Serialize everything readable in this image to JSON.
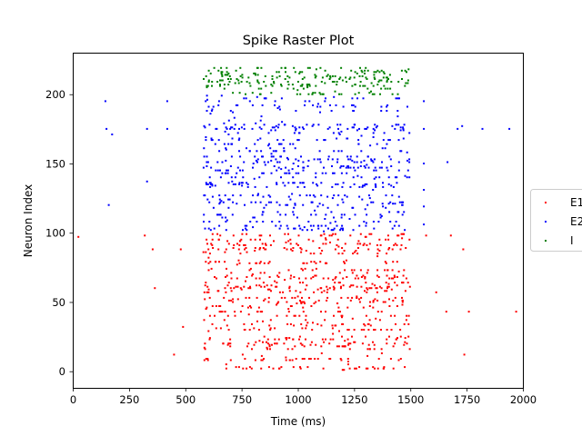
{
  "chart_data": {
    "type": "scatter",
    "title": "Spike Raster Plot",
    "xlabel": "Time (ms)",
    "ylabel": "Neuron Index",
    "xlim": [
      0,
      2000
    ],
    "ylim": [
      -12,
      230
    ],
    "xticks": [
      0,
      250,
      500,
      750,
      1000,
      1250,
      1500,
      1750,
      2000
    ],
    "yticks": [
      0,
      50,
      100,
      150,
      200
    ],
    "grid": false,
    "legend_position": "right (partially clipped)",
    "series": [
      {
        "name": "E1",
        "color": "#ff0000",
        "marker_size": 2,
        "neurons": {
          "min": 0,
          "max": 99
        },
        "active_window_ms": [
          550,
          1500
        ],
        "points": [
          [
            25,
            97
          ],
          [
            320,
            98
          ],
          [
            355,
            88
          ],
          [
            365,
            60
          ],
          [
            450,
            12
          ],
          [
            480,
            88
          ],
          [
            490,
            32
          ],
          [
            1570,
            98
          ],
          [
            1660,
            43
          ],
          [
            1680,
            98
          ],
          [
            1735,
            88
          ],
          [
            1740,
            12
          ],
          [
            1760,
            43
          ],
          [
            1970,
            43
          ],
          [
            1615,
            57
          ]
        ]
      },
      {
        "name": "E2",
        "color": "#0000ff",
        "marker_size": 2,
        "neurons": {
          "min": 100,
          "max": 199
        },
        "active_window_ms": [
          550,
          1500
        ],
        "points": [
          [
            145,
            195
          ],
          [
            150,
            175
          ],
          [
            160,
            120
          ],
          [
            175,
            171
          ],
          [
            330,
            175
          ],
          [
            330,
            137
          ],
          [
            420,
            195
          ],
          [
            420,
            175
          ],
          [
            1560,
            195
          ],
          [
            1560,
            175
          ],
          [
            1560,
            150
          ],
          [
            1560,
            131
          ],
          [
            1560,
            119
          ],
          [
            1560,
            106
          ],
          [
            1665,
            151
          ],
          [
            1710,
            175
          ],
          [
            1730,
            177
          ],
          [
            1820,
            175
          ],
          [
            1940,
            175
          ]
        ]
      },
      {
        "name": "I",
        "color": "#008000",
        "marker_size": 2,
        "neurons": {
          "min": 200,
          "max": 219
        },
        "active_window_ms": [
          550,
          1500
        ],
        "points": []
      }
    ]
  }
}
